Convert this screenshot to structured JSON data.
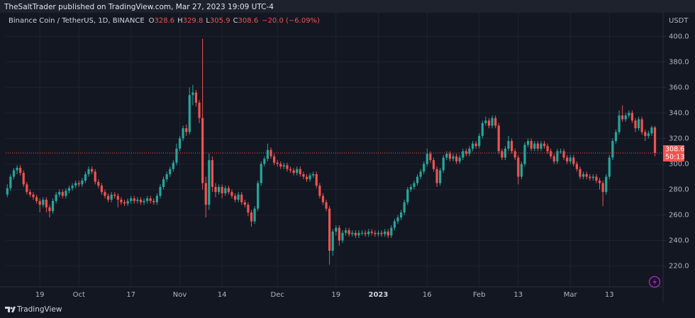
{
  "header": "TheSaltTrader published on TradingView.com, Mar 27, 2023 19:09 UTC-4",
  "footer": "TradingView",
  "chart_data": {
    "type": "candlestick",
    "legend_title": "Binance Coin / TetherUS, 1D, BINANCE",
    "legend_labels": [
      "O",
      "H",
      "L",
      "C"
    ],
    "change": "−20.0 (−6.09%)",
    "countdown": "50:13",
    "y_axis_label": "USDT",
    "up_color": "#26a69a",
    "down_color": "#ef5350",
    "grid": true,
    "xlim": [
      -0.5,
      201.5
    ],
    "xticks": [
      {
        "value": 10,
        "label": "19"
      },
      {
        "value": 22,
        "label": "Oct"
      },
      {
        "value": 38,
        "label": "17"
      },
      {
        "value": 53,
        "label": "Nov"
      },
      {
        "value": 66,
        "label": "14"
      },
      {
        "value": 83,
        "label": "Dec"
      },
      {
        "value": 101,
        "label": "19"
      },
      {
        "value": 114,
        "label": "2023"
      },
      {
        "value": 129,
        "label": "16"
      },
      {
        "value": 145,
        "label": "Feb"
      },
      {
        "value": 157,
        "label": "13"
      },
      {
        "value": 173,
        "label": "Mar"
      },
      {
        "value": 185,
        "label": "13"
      }
    ],
    "ylim": [
      203.7,
      418.5
    ],
    "yticks": [
      {
        "value": 220,
        "label": "220.0"
      },
      {
        "value": 240,
        "label": "240.0"
      },
      {
        "value": 260,
        "label": "260.0"
      },
      {
        "value": 280,
        "label": "280.0"
      },
      {
        "value": 300,
        "label": "300.0"
      },
      {
        "value": 320,
        "label": "320.0"
      },
      {
        "value": 340,
        "label": "340.0"
      },
      {
        "value": 360,
        "label": "360.0"
      },
      {
        "value": 380,
        "label": "380.0"
      },
      {
        "value": 400,
        "label": "400.0"
      }
    ],
    "candles": [
      [
        276,
        284,
        274,
        281
      ],
      [
        281,
        292,
        279,
        290
      ],
      [
        290,
        297,
        288,
        295
      ],
      [
        295,
        299,
        292,
        297
      ],
      [
        297,
        299,
        291,
        293
      ],
      [
        293,
        295,
        282,
        284
      ],
      [
        284,
        286,
        276,
        278
      ],
      [
        278,
        280,
        274,
        276
      ],
      [
        276,
        278,
        272,
        274
      ],
      [
        274,
        276,
        269,
        271
      ],
      [
        271,
        273,
        262,
        268
      ],
      [
        268,
        274,
        266,
        272
      ],
      [
        272,
        274,
        262,
        266
      ],
      [
        266,
        268,
        258,
        263
      ],
      [
        263,
        273,
        261,
        271
      ],
      [
        271,
        278,
        269,
        276
      ],
      [
        276,
        280,
        274,
        278
      ],
      [
        278,
        280,
        273,
        275
      ],
      [
        275,
        281,
        273,
        279
      ],
      [
        279,
        283,
        277,
        281
      ],
      [
        281,
        285,
        279,
        283
      ],
      [
        283,
        287,
        281,
        285
      ],
      [
        285,
        287,
        282,
        284
      ],
      [
        284,
        289,
        282,
        287
      ],
      [
        287,
        294,
        285,
        292
      ],
      [
        292,
        298,
        290,
        296
      ],
      [
        296,
        298,
        292,
        294
      ],
      [
        294,
        296,
        284,
        286
      ],
      [
        286,
        288,
        281,
        283
      ],
      [
        283,
        285,
        276,
        278
      ],
      [
        278,
        280,
        273,
        275
      ],
      [
        275,
        277,
        270,
        272
      ],
      [
        272,
        278,
        270,
        276
      ],
      [
        276,
        278,
        273,
        275
      ],
      [
        275,
        277,
        266,
        272
      ],
      [
        272,
        274,
        268,
        270
      ],
      [
        270,
        272,
        267,
        269
      ],
      [
        269,
        273,
        267,
        271
      ],
      [
        271,
        275,
        269,
        273
      ],
      [
        273,
        275,
        269,
        271
      ],
      [
        271,
        274,
        269,
        272
      ],
      [
        272,
        274,
        268,
        270
      ],
      [
        270,
        273,
        268,
        271
      ],
      [
        271,
        275,
        269,
        273
      ],
      [
        273,
        275,
        269,
        271
      ],
      [
        271,
        273,
        268,
        270
      ],
      [
        270,
        277,
        268,
        275
      ],
      [
        275,
        284,
        273,
        282
      ],
      [
        282,
        290,
        280,
        288
      ],
      [
        288,
        294,
        286,
        292
      ],
      [
        292,
        298,
        290,
        296
      ],
      [
        296,
        303,
        294,
        301
      ],
      [
        301,
        316,
        299,
        312
      ],
      [
        312,
        322,
        310,
        320
      ],
      [
        320,
        330,
        318,
        328
      ],
      [
        328,
        331,
        322,
        325
      ],
      [
        325,
        360,
        323,
        354
      ],
      [
        354,
        362,
        346,
        356
      ],
      [
        356,
        358,
        345,
        348
      ],
      [
        348,
        350,
        332,
        336
      ],
      [
        336,
        398,
        280,
        285
      ],
      [
        285,
        290,
        258,
        268
      ],
      [
        268,
        308,
        264,
        303
      ],
      [
        303,
        306,
        278,
        282
      ],
      [
        282,
        285,
        274,
        278
      ],
      [
        278,
        284,
        276,
        282
      ],
      [
        282,
        284,
        273,
        277
      ],
      [
        277,
        283,
        275,
        281
      ],
      [
        281,
        283,
        276,
        278
      ],
      [
        278,
        280,
        273,
        275
      ],
      [
        275,
        277,
        270,
        272
      ],
      [
        272,
        278,
        270,
        276
      ],
      [
        276,
        278,
        268,
        270
      ],
      [
        270,
        272,
        266,
        268
      ],
      [
        268,
        270,
        259,
        262
      ],
      [
        262,
        264,
        251,
        255
      ],
      [
        255,
        267,
        253,
        265
      ],
      [
        265,
        287,
        263,
        285
      ],
      [
        285,
        302,
        283,
        300
      ],
      [
        300,
        306,
        298,
        304
      ],
      [
        304,
        316,
        302,
        311
      ],
      [
        311,
        313,
        304,
        306
      ],
      [
        306,
        308,
        299,
        301
      ],
      [
        301,
        303,
        298,
        300
      ],
      [
        300,
        302,
        296,
        298
      ],
      [
        298,
        301,
        296,
        299
      ],
      [
        299,
        301,
        294,
        296
      ],
      [
        296,
        298,
        293,
        295
      ],
      [
        295,
        297,
        291,
        293
      ],
      [
        293,
        298,
        291,
        296
      ],
      [
        296,
        298,
        290,
        292
      ],
      [
        292,
        294,
        288,
        290
      ],
      [
        290,
        292,
        286,
        288
      ],
      [
        288,
        293,
        286,
        291
      ],
      [
        291,
        294,
        289,
        292
      ],
      [
        292,
        294,
        281,
        283
      ],
      [
        283,
        285,
        273,
        275
      ],
      [
        275,
        277,
        268,
        270
      ],
      [
        270,
        272,
        263,
        265
      ],
      [
        265,
        267,
        221,
        232
      ],
      [
        232,
        249,
        228,
        247
      ],
      [
        247,
        252,
        244,
        250
      ],
      [
        250,
        252,
        236,
        240
      ],
      [
        240,
        248,
        238,
        246
      ],
      [
        246,
        250,
        244,
        248
      ],
      [
        248,
        250,
        243,
        245
      ],
      [
        245,
        248,
        243,
        246
      ],
      [
        246,
        248,
        242,
        244
      ],
      [
        244,
        248,
        242,
        246
      ],
      [
        246,
        248,
        244,
        246
      ],
      [
        246,
        248,
        243,
        245
      ],
      [
        245,
        249,
        243,
        247
      ],
      [
        247,
        249,
        244,
        246
      ],
      [
        246,
        248,
        243,
        245
      ],
      [
        245,
        248,
        243,
        246
      ],
      [
        246,
        248,
        243,
        245
      ],
      [
        245,
        249,
        243,
        247
      ],
      [
        247,
        249,
        242,
        244
      ],
      [
        244,
        252,
        242,
        250
      ],
      [
        250,
        257,
        248,
        255
      ],
      [
        255,
        260,
        253,
        258
      ],
      [
        258,
        264,
        256,
        262
      ],
      [
        262,
        272,
        260,
        270
      ],
      [
        270,
        282,
        268,
        280
      ],
      [
        280,
        284,
        278,
        282
      ],
      [
        282,
        287,
        280,
        285
      ],
      [
        285,
        292,
        283,
        290
      ],
      [
        290,
        296,
        288,
        294
      ],
      [
        294,
        302,
        292,
        300
      ],
      [
        300,
        312,
        298,
        308
      ],
      [
        308,
        310,
        301,
        303
      ],
      [
        303,
        305,
        294,
        296
      ],
      [
        296,
        298,
        282,
        285
      ],
      [
        285,
        297,
        283,
        295
      ],
      [
        295,
        307,
        293,
        305
      ],
      [
        305,
        310,
        303,
        308
      ],
      [
        308,
        310,
        302,
        304
      ],
      [
        304,
        308,
        302,
        306
      ],
      [
        306,
        308,
        300,
        302
      ],
      [
        302,
        307,
        300,
        305
      ],
      [
        305,
        312,
        303,
        310
      ],
      [
        310,
        312,
        306,
        308
      ],
      [
        308,
        314,
        306,
        312
      ],
      [
        312,
        318,
        310,
        316
      ],
      [
        316,
        318,
        312,
        314
      ],
      [
        314,
        324,
        312,
        322
      ],
      [
        322,
        334,
        320,
        332
      ],
      [
        332,
        337,
        330,
        334
      ],
      [
        334,
        336,
        328,
        330
      ],
      [
        330,
        338,
        328,
        336
      ],
      [
        336,
        338,
        328,
        330
      ],
      [
        330,
        332,
        308,
        310
      ],
      [
        310,
        312,
        303,
        305
      ],
      [
        305,
        314,
        303,
        312
      ],
      [
        312,
        322,
        310,
        318
      ],
      [
        318,
        320,
        308,
        310
      ],
      [
        310,
        312,
        303,
        305
      ],
      [
        305,
        307,
        284,
        290
      ],
      [
        290,
        302,
        288,
        300
      ],
      [
        300,
        317,
        298,
        315
      ],
      [
        315,
        320,
        313,
        318
      ],
      [
        318,
        320,
        310,
        312
      ],
      [
        312,
        318,
        310,
        316
      ],
      [
        316,
        318,
        310,
        312
      ],
      [
        312,
        318,
        310,
        316
      ],
      [
        316,
        318,
        312,
        314
      ],
      [
        314,
        316,
        308,
        310
      ],
      [
        310,
        312,
        304,
        306
      ],
      [
        306,
        308,
        300,
        302
      ],
      [
        302,
        312,
        300,
        310
      ],
      [
        310,
        312,
        308,
        310
      ],
      [
        310,
        312,
        303,
        305
      ],
      [
        305,
        307,
        300,
        302
      ],
      [
        302,
        307,
        300,
        305
      ],
      [
        305,
        307,
        298,
        300
      ],
      [
        300,
        302,
        294,
        296
      ],
      [
        296,
        298,
        288,
        290
      ],
      [
        290,
        294,
        288,
        292
      ],
      [
        292,
        294,
        288,
        290
      ],
      [
        290,
        292,
        287,
        289
      ],
      [
        289,
        292,
        287,
        290
      ],
      [
        290,
        292,
        285,
        287
      ],
      [
        287,
        289,
        280,
        285
      ],
      [
        285,
        287,
        267,
        278
      ],
      [
        278,
        292,
        276,
        290
      ],
      [
        290,
        307,
        288,
        305
      ],
      [
        305,
        320,
        303,
        318
      ],
      [
        318,
        327,
        316,
        325
      ],
      [
        325,
        342,
        323,
        338
      ],
      [
        338,
        346,
        333,
        335
      ],
      [
        335,
        340,
        333,
        338
      ],
      [
        338,
        342,
        336,
        340
      ],
      [
        340,
        342,
        332,
        334
      ],
      [
        334,
        336,
        325,
        328
      ],
      [
        328,
        337,
        326,
        335
      ],
      [
        335,
        337,
        323,
        325
      ],
      [
        325,
        327,
        318,
        322
      ],
      [
        322,
        326,
        320,
        324
      ],
      [
        324,
        330,
        322,
        328.6
      ],
      [
        328.6,
        329.8,
        305.9,
        308.6
      ]
    ]
  }
}
